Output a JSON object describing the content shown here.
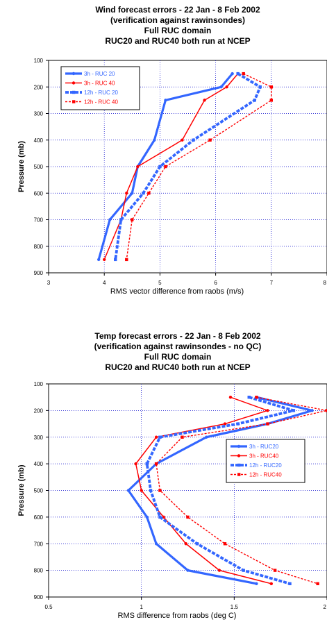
{
  "chart_data": [
    {
      "type": "line",
      "title_lines": [
        "Wind forecast errors - 22 Jan - 8 Feb 2002",
        "(verification against rawinsondes)",
        "Full RUC domain",
        "RUC20 and RUC40 both run at NCEP"
      ],
      "xlabel": "RMS vector difference from raobs (m/s)",
      "ylabel": "Pressure (mb)",
      "xlim": [
        3,
        8
      ],
      "ylim": [
        100,
        900
      ],
      "y_inverted": true,
      "xticks": [
        "3",
        "4",
        "5",
        "6",
        "7",
        "8"
      ],
      "yticks": [
        "100",
        "200",
        "300",
        "400",
        "500",
        "600",
        "700",
        "800",
        "900"
      ],
      "grid": true,
      "legend_position": "top-left",
      "series": [
        {
          "name": "3h - RUC 20",
          "color": "#3366ff",
          "style": "solid-thick",
          "x": [
            6.3,
            6.1,
            5.1,
            4.9,
            4.6,
            4.5,
            4.1,
            3.9
          ],
          "y": [
            150,
            200,
            250,
            400,
            500,
            600,
            700,
            850
          ]
        },
        {
          "name": "3h - RUC 40",
          "color": "#ff0000",
          "style": "solid",
          "x": [
            6.4,
            6.2,
            5.8,
            5.4,
            4.6,
            4.4,
            4.3,
            4.0
          ],
          "y": [
            150,
            200,
            250,
            400,
            500,
            600,
            700,
            850
          ]
        },
        {
          "name": "12h - RUC 20",
          "color": "#3366ff",
          "style": "dashed-thick",
          "x": [
            6.4,
            6.8,
            6.7,
            5.6,
            5.0,
            4.7,
            4.3,
            4.2
          ],
          "y": [
            150,
            200,
            250,
            400,
            500,
            600,
            700,
            850
          ]
        },
        {
          "name": "12h - RUC 40",
          "color": "#ff0000",
          "style": "dashed",
          "x": [
            6.5,
            7.0,
            7.0,
            5.9,
            5.1,
            4.8,
            4.5,
            4.4
          ],
          "y": [
            150,
            200,
            250,
            400,
            500,
            600,
            700,
            850
          ]
        }
      ]
    },
    {
      "type": "line",
      "title_lines": [
        "Temp forecast errors - 22 Jan - 8 Feb 2002",
        "(verification against rawinsondes - no QC)",
        "Full RUC domain",
        "RUC20 and RUC40 both run at NCEP"
      ],
      "xlabel": "RMS difference from raobs (deg C)",
      "ylabel": "Pressure (mb)",
      "xlim": [
        0.5,
        2
      ],
      "ylim": [
        100,
        900
      ],
      "y_inverted": true,
      "xticks": [
        "0.5",
        "1",
        "1.5",
        "2"
      ],
      "yticks": [
        "100",
        "200",
        "300",
        "400",
        "500",
        "600",
        "700",
        "800",
        "900"
      ],
      "grid": true,
      "legend_position": "right",
      "series": [
        {
          "name": "3h - RUC20",
          "color": "#3366ff",
          "style": "solid-thick",
          "x": [
            1.62,
            1.92,
            1.68,
            1.35,
            1.08,
            0.93,
            1.03,
            1.08,
            1.25,
            1.62
          ],
          "y": [
            150,
            200,
            250,
            300,
            400,
            500,
            600,
            700,
            800,
            850
          ]
        },
        {
          "name": "3h - RUC40",
          "color": "#ff0000",
          "style": "solid",
          "x": [
            1.48,
            1.68,
            1.45,
            1.08,
            0.97,
            1.0,
            1.12,
            1.24,
            1.42,
            1.7
          ],
          "y": [
            150,
            200,
            250,
            300,
            400,
            500,
            600,
            700,
            800,
            850
          ]
        },
        {
          "name": "12h - RUC20",
          "color": "#3366ff",
          "style": "dashed-thick",
          "x": [
            1.58,
            1.82,
            1.52,
            1.1,
            1.03,
            1.05,
            1.1,
            1.3,
            1.55,
            1.8
          ],
          "y": [
            150,
            200,
            250,
            300,
            400,
            500,
            600,
            700,
            800,
            850
          ]
        },
        {
          "name": "12h - RUC40",
          "color": "#ff0000",
          "style": "dashed",
          "x": [
            1.62,
            2.0,
            1.68,
            1.22,
            1.08,
            1.1,
            1.25,
            1.45,
            1.72,
            1.95
          ],
          "y": [
            150,
            200,
            250,
            300,
            400,
            500,
            600,
            700,
            800,
            850
          ]
        }
      ]
    }
  ]
}
